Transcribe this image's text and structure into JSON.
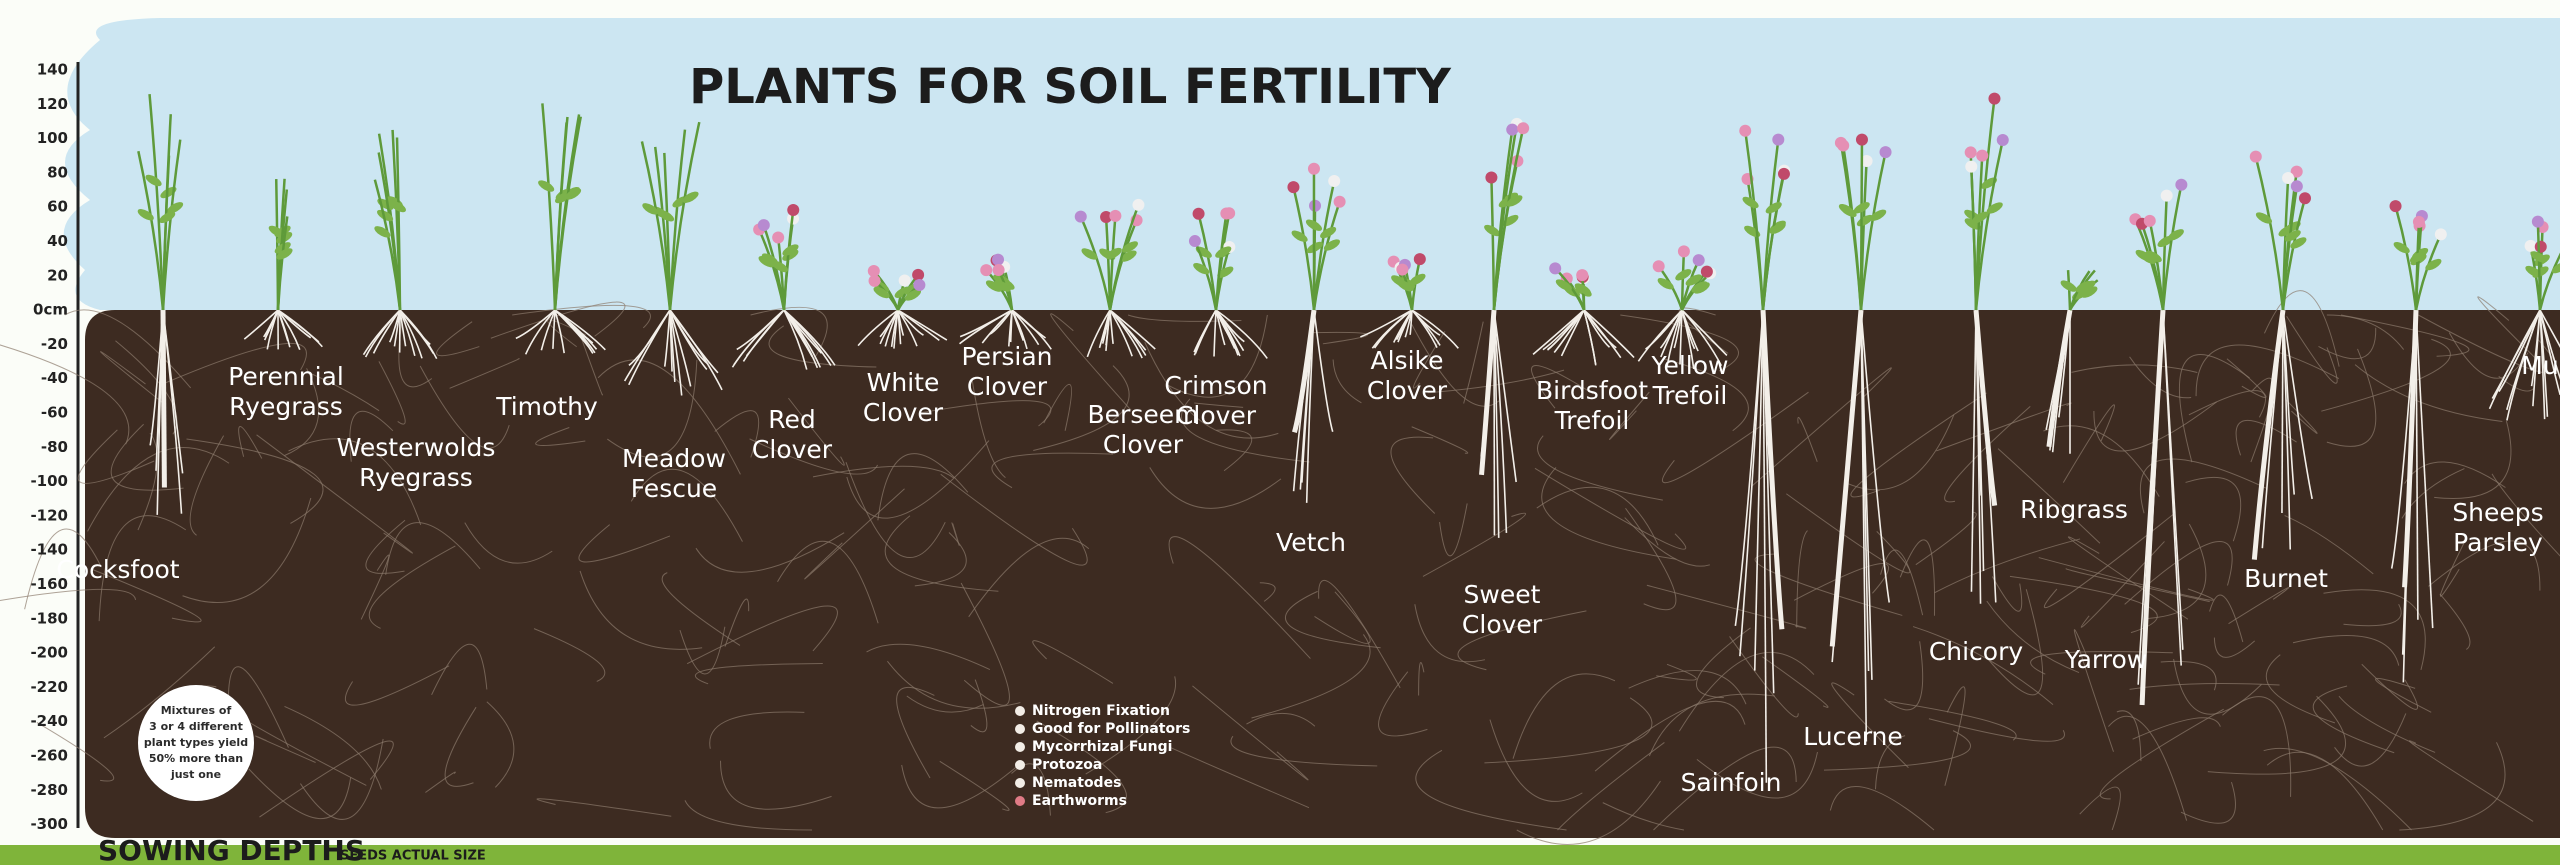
{
  "title": "PLANTS FOR SOIL FERTILITY",
  "depth_scale": [
    "140",
    "120",
    "100",
    "80",
    "60",
    "40",
    "20",
    "0cm",
    "-20",
    "-40",
    "-60",
    "-80",
    "-100",
    "-120",
    "-140",
    "-160",
    "-180",
    "-200",
    "-220",
    "-240",
    "-260",
    "-280",
    "-300"
  ],
  "plants": [
    {
      "label": [
        "Cocksfoot"
      ]
    },
    {
      "label": [
        "Perennial",
        "Ryegrass"
      ]
    },
    {
      "label": [
        "Westerwolds",
        "Ryegrass"
      ]
    },
    {
      "label": [
        "Timothy"
      ]
    },
    {
      "label": [
        "Meadow",
        "Fescue"
      ]
    },
    {
      "label": [
        "Red",
        "Clover"
      ]
    },
    {
      "label": [
        "White",
        "Clover"
      ]
    },
    {
      "label": [
        "Persian",
        "Clover"
      ]
    },
    {
      "label": [
        "Berseem",
        "Clover"
      ]
    },
    {
      "label": [
        "Crimson",
        "Clover"
      ]
    },
    {
      "label": [
        "Vetch"
      ]
    },
    {
      "label": [
        "Alsike",
        "Clover"
      ]
    },
    {
      "label": [
        "Sweet",
        "Clover"
      ]
    },
    {
      "label": [
        "Birdsfoot",
        "Trefoil"
      ]
    },
    {
      "label": [
        "Yellow",
        "Trefoil"
      ]
    },
    {
      "label": [
        "Sainfoin"
      ]
    },
    {
      "label": [
        "Lucerne"
      ]
    },
    {
      "label": [
        "Chicory"
      ]
    },
    {
      "label": [
        "Ribgrass"
      ]
    },
    {
      "label": [
        "Yarrow"
      ]
    },
    {
      "label": [
        "Burnet"
      ]
    },
    {
      "label": [
        "Sheeps",
        "Parsley"
      ]
    },
    {
      "label": [
        "Mu"
      ]
    }
  ],
  "legend": [
    "Nitrogen Fixation",
    "Good for Pollinators",
    "Mycorrhizal Fungi",
    "Protozoa",
    "Nematodes",
    "Earthworms"
  ],
  "note": [
    "Mixtures of",
    "3 or 4 different",
    "plant types yield",
    "50% more than",
    "just one"
  ],
  "footer": {
    "title": "SOWING DEPTHS",
    "subtitle": "SEEDS ACTUAL SIZE"
  }
}
